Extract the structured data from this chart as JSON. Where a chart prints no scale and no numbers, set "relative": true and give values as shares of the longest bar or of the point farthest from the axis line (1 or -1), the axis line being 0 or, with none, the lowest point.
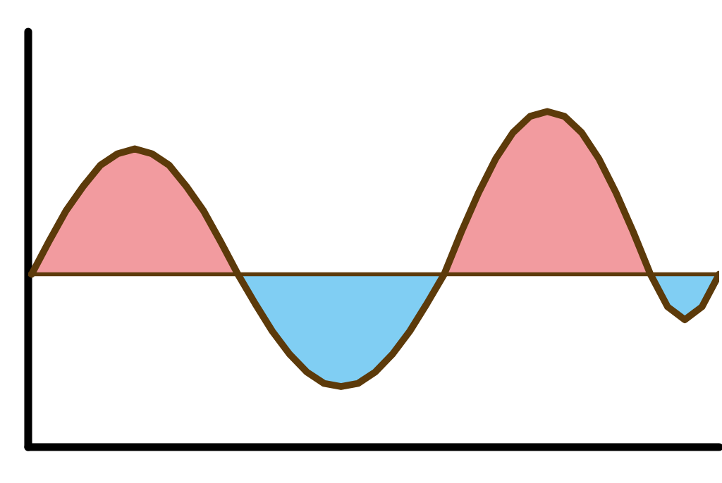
{
  "chart_data": {
    "type": "area",
    "relative": true,
    "categories": [
      null,
      null,
      null,
      null,
      null,
      null,
      null,
      null,
      null,
      null,
      null,
      null,
      null,
      null,
      null,
      null,
      null,
      null,
      null,
      null,
      null,
      null,
      null,
      null,
      null,
      null,
      null,
      null,
      null,
      null,
      null,
      null,
      null,
      null,
      null,
      null,
      null,
      null,
      null,
      null,
      null
    ],
    "series": [
      {
        "color": "#f29b9f",
        "values": [
          0,
          0.2,
          0.39,
          0.54,
          0.67,
          0.74,
          0.77,
          0.74,
          0.67,
          0.54,
          0.39,
          0.2,
          0,
          null,
          null,
          null,
          null,
          null,
          null,
          null,
          null,
          null,
          null,
          null,
          0,
          0.26,
          0.5,
          0.71,
          0.87,
          0.97,
          1.0,
          0.97,
          0.87,
          0.71,
          0.5,
          0.26,
          0,
          null,
          null,
          null,
          null
        ]
      },
      {
        "color": "#80cef3",
        "values": [
          null,
          null,
          null,
          null,
          null,
          null,
          null,
          null,
          null,
          null,
          null,
          null,
          0,
          -0.18,
          -0.35,
          -0.49,
          -0.6,
          -0.67,
          -0.69,
          -0.67,
          -0.6,
          -0.49,
          -0.35,
          -0.18,
          0,
          null,
          null,
          null,
          null,
          null,
          null,
          null,
          null,
          null,
          null,
          null,
          0,
          -0.2,
          -0.28,
          -0.2,
          0
        ]
      },
      {
        "type": "line",
        "color": "#5c3a0a",
        "values": [
          0,
          0.2,
          0.39,
          0.54,
          0.67,
          0.74,
          0.77,
          0.74,
          0.67,
          0.54,
          0.39,
          0.2,
          0,
          -0.18,
          -0.35,
          -0.49,
          -0.6,
          -0.67,
          -0.69,
          -0.67,
          -0.6,
          -0.49,
          -0.35,
          -0.18,
          0,
          0.26,
          0.5,
          0.71,
          0.87,
          0.97,
          1.0,
          0.97,
          0.87,
          0.71,
          0.5,
          0.26,
          0,
          -0.2,
          -0.28,
          -0.2,
          0
        ]
      }
    ]
  }
}
